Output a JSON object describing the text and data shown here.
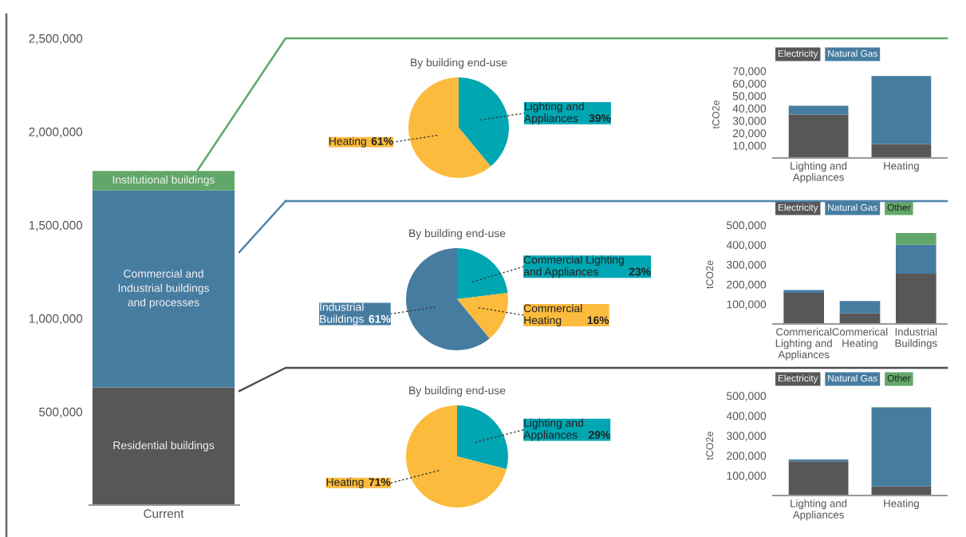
{
  "chart_data": [
    {
      "type": "bar",
      "stacked": true,
      "categories": [
        "Current"
      ],
      "series": [
        {
          "name": "Residential buildings",
          "color": "#575757",
          "values": [
            630000
          ]
        },
        {
          "name": "Commercial and\nIndustrial buildings\nand processes",
          "color": "#477ca1",
          "values": [
            1055000
          ]
        },
        {
          "name": "Institutional buildings",
          "color": "#62a76a",
          "values": [
            105000
          ]
        }
      ],
      "ylim": [
        0,
        2500000
      ],
      "yticks": [
        {
          "value": 500000,
          "label": "500,000"
        },
        {
          "value": 1000000,
          "label": "1,000,000"
        },
        {
          "value": 1500000,
          "label": "1,500,000"
        },
        {
          "value": 2000000,
          "label": "2,000,000"
        },
        {
          "value": 2500000,
          "label": "2,500,000"
        }
      ]
    },
    {
      "type": "pie",
      "title": "By building end-use",
      "categories": [
        "Lighting and\nAppliances",
        "Heating"
      ],
      "values": [
        39,
        61
      ],
      "colors": [
        "#00a6b2",
        "#fcbb3d"
      ],
      "value_labels": [
        "39%",
        "61%"
      ]
    },
    {
      "type": "bar",
      "stacked": true,
      "ylabel": "tCO2e",
      "legend": "top",
      "categories": [
        "Lighting and\nAppliances",
        "Heating"
      ],
      "series": [
        {
          "name": "Electricity",
          "color": "#575757",
          "values": [
            35000,
            11000
          ]
        },
        {
          "name": "Natural Gas",
          "color": "#477ca1",
          "values": [
            7000,
            55000
          ]
        }
      ],
      "ylim": [
        0,
        70000
      ],
      "yticks": [
        {
          "value": 10000,
          "label": "10,000"
        },
        {
          "value": 20000,
          "label": "20,000"
        },
        {
          "value": 30000,
          "label": "30,000"
        },
        {
          "value": 40000,
          "label": "40,000"
        },
        {
          "value": 50000,
          "label": "50,000"
        },
        {
          "value": 60000,
          "label": "60,000"
        },
        {
          "value": 70000,
          "label": "70,000"
        }
      ]
    },
    {
      "type": "pie",
      "title": "By building end-use",
      "categories": [
        "Commercial Lighting\nand Appliances",
        "Commercial\nHeating",
        "Industrial\nBuildings"
      ],
      "values": [
        23,
        16,
        61
      ],
      "colors": [
        "#00a6b2",
        "#fcbb3d",
        "#477ca1"
      ],
      "value_labels": [
        "23%",
        "16%",
        "61%"
      ]
    },
    {
      "type": "bar",
      "stacked": true,
      "ylabel": "tCO2e",
      "legend": "top",
      "categories": [
        "Commerical\nLighting and\nAppliances",
        "Commerical\nHeating",
        "Industrial\nBuildings"
      ],
      "series": [
        {
          "name": "Electricity",
          "color": "#575757",
          "values": [
            157000,
            53000,
            254000
          ]
        },
        {
          "name": "Natural Gas",
          "color": "#477ca1",
          "values": [
            14000,
            63000,
            146000
          ]
        },
        {
          "name": "Other",
          "color": "#62a76a",
          "values": [
            0,
            0,
            60000
          ]
        }
      ],
      "ylim": [
        0,
        500000
      ],
      "yticks": [
        {
          "value": 100000,
          "label": "100,000"
        },
        {
          "value": 200000,
          "label": "200,000"
        },
        {
          "value": 300000,
          "label": "300,000"
        },
        {
          "value": 400000,
          "label": "400,000"
        },
        {
          "value": 500000,
          "label": "500,000"
        }
      ]
    },
    {
      "type": "pie",
      "title": "By building end-use",
      "categories": [
        "Lighting and\nAppliances",
        "Heating"
      ],
      "values": [
        29,
        71
      ],
      "colors": [
        "#00a6b2",
        "#fcbb3d"
      ],
      "value_labels": [
        "29%",
        "71%"
      ]
    },
    {
      "type": "bar",
      "stacked": true,
      "ylabel": "tCO2e",
      "legend": "top",
      "categories": [
        "Lighting and\nAppliances",
        "Heating"
      ],
      "series": [
        {
          "name": "Electricity",
          "color": "#575757",
          "values": [
            171000,
            45000
          ]
        },
        {
          "name": "Natural Gas",
          "color": "#477ca1",
          "values": [
            10000,
            396000
          ]
        },
        {
          "name": "Other",
          "color": "#62a76a",
          "values": [
            0,
            2000
          ]
        }
      ],
      "ylim": [
        0,
        500000
      ],
      "yticks": [
        {
          "value": 100000,
          "label": "100,000"
        },
        {
          "value": 200000,
          "label": "200,000"
        },
        {
          "value": 300000,
          "label": "300,000"
        },
        {
          "value": 400000,
          "label": "400,000"
        },
        {
          "value": 500000,
          "label": "500,000"
        }
      ]
    }
  ]
}
